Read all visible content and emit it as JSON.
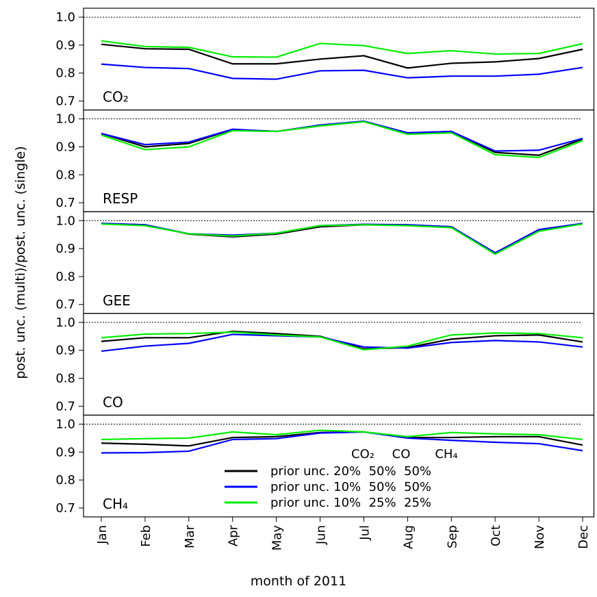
{
  "chart_data": [
    {
      "type": "line",
      "label": "CO₂",
      "ylabel": "post. unc. (multi)/post. unc. (single)",
      "ylim": [
        0.668,
        1.032
      ],
      "yticks": [
        0.7,
        0.8,
        0.9,
        {
          "value": 1,
          "label": "1.0"
        }
      ],
      "reference_line": 1,
      "series": [
        {
          "color": "#000000",
          "values": [
            0.903,
            0.887,
            0.885,
            0.833,
            0.833,
            0.85,
            0.862,
            0.818,
            0.835,
            0.84,
            0.852,
            0.885
          ]
        },
        {
          "color": "#0000ff",
          "values": [
            0.832,
            0.82,
            0.816,
            0.781,
            0.778,
            0.808,
            0.81,
            0.783,
            0.789,
            0.789,
            0.796,
            0.82
          ]
        },
        {
          "color": "#00ee00",
          "values": [
            0.915,
            0.895,
            0.892,
            0.858,
            0.857,
            0.906,
            0.898,
            0.87,
            0.88,
            0.868,
            0.87,
            0.905
          ]
        }
      ]
    },
    {
      "type": "line",
      "label": "RESP",
      "ylim": [
        0.668,
        1.032
      ],
      "yticks": [
        0.7,
        0.8,
        0.9,
        {
          "value": 1,
          "label": "1.0"
        }
      ],
      "reference_line": 1,
      "series": [
        {
          "color": "#000000",
          "values": [
            0.948,
            0.9,
            0.912,
            0.962,
            0.955,
            0.975,
            0.99,
            0.95,
            0.955,
            0.88,
            0.87,
            0.928
          ]
        },
        {
          "color": "#0000ff",
          "values": [
            0.948,
            0.908,
            0.917,
            0.963,
            0.955,
            0.978,
            0.992,
            0.95,
            0.955,
            0.885,
            0.888,
            0.93
          ]
        },
        {
          "color": "#00ee00",
          "values": [
            0.942,
            0.89,
            0.9,
            0.958,
            0.955,
            0.975,
            0.99,
            0.945,
            0.95,
            0.872,
            0.862,
            0.922
          ]
        }
      ]
    },
    {
      "type": "line",
      "label": "GEE",
      "ylim": [
        0.668,
        1.032
      ],
      "yticks": [
        0.7,
        0.8,
        0.9,
        {
          "value": 1,
          "label": "1.0"
        }
      ],
      "reference_line": 1,
      "series": [
        {
          "color": "#000000",
          "values": [
            0.99,
            0.985,
            0.952,
            0.942,
            0.952,
            0.978,
            0.985,
            0.985,
            0.978,
            0.882,
            0.965,
            0.99
          ]
        },
        {
          "color": "#0000ff",
          "values": [
            0.99,
            0.985,
            0.953,
            0.948,
            0.955,
            0.982,
            0.987,
            0.985,
            0.978,
            0.885,
            0.968,
            0.99
          ]
        },
        {
          "color": "#00ee00",
          "values": [
            0.988,
            0.982,
            0.953,
            0.945,
            0.955,
            0.982,
            0.985,
            0.982,
            0.975,
            0.88,
            0.962,
            0.988
          ]
        }
      ]
    },
    {
      "type": "line",
      "label": "CO",
      "ylim": [
        0.668,
        1.032
      ],
      "yticks": [
        0.7,
        0.8,
        0.9,
        {
          "value": 1,
          "label": "1.0"
        }
      ],
      "reference_line": 1,
      "series": [
        {
          "color": "#000000",
          "values": [
            0.932,
            0.945,
            0.945,
            0.968,
            0.96,
            0.95,
            0.905,
            0.91,
            0.94,
            0.952,
            0.955,
            0.93
          ]
        },
        {
          "color": "#0000ff",
          "values": [
            0.897,
            0.915,
            0.925,
            0.957,
            0.952,
            0.948,
            0.912,
            0.908,
            0.928,
            0.935,
            0.93,
            0.912
          ]
        },
        {
          "color": "#00ee00",
          "values": [
            0.945,
            0.958,
            0.96,
            0.965,
            0.955,
            0.948,
            0.902,
            0.915,
            0.955,
            0.962,
            0.96,
            0.945
          ]
        }
      ]
    },
    {
      "type": "line",
      "label": "CH₄",
      "xlabel": "month of 2011",
      "categories": [
        "Jan",
        "Feb",
        "Mar",
        "Apr",
        "May",
        "Jun",
        "Jul",
        "Aug",
        "Sep",
        "Oct",
        "Nov",
        "Dec"
      ],
      "ylim": [
        0.668,
        1.032
      ],
      "yticks": [
        0.7,
        0.8,
        0.9,
        {
          "value": 1,
          "label": "1.0"
        }
      ],
      "reference_line": 1,
      "legend_header": [
        "CO₂",
        "CO",
        "CH₄"
      ],
      "series": [
        {
          "name": "prior unc. 20%  50%  50%",
          "color": "#000000",
          "values": [
            0.932,
            0.928,
            0.922,
            0.952,
            0.955,
            0.97,
            0.972,
            0.952,
            0.952,
            0.955,
            0.955,
            0.925
          ]
        },
        {
          "name": "prior unc. 10%  50%  50%",
          "color": "#0000ff",
          "values": [
            0.897,
            0.898,
            0.903,
            0.945,
            0.948,
            0.968,
            0.972,
            0.95,
            0.942,
            0.935,
            0.93,
            0.905
          ]
        },
        {
          "name": "prior unc. 10%  25%  25%",
          "color": "#00ee00",
          "values": [
            0.945,
            0.948,
            0.95,
            0.972,
            0.962,
            0.978,
            0.972,
            0.955,
            0.97,
            0.965,
            0.962,
            0.945
          ]
        }
      ]
    }
  ]
}
